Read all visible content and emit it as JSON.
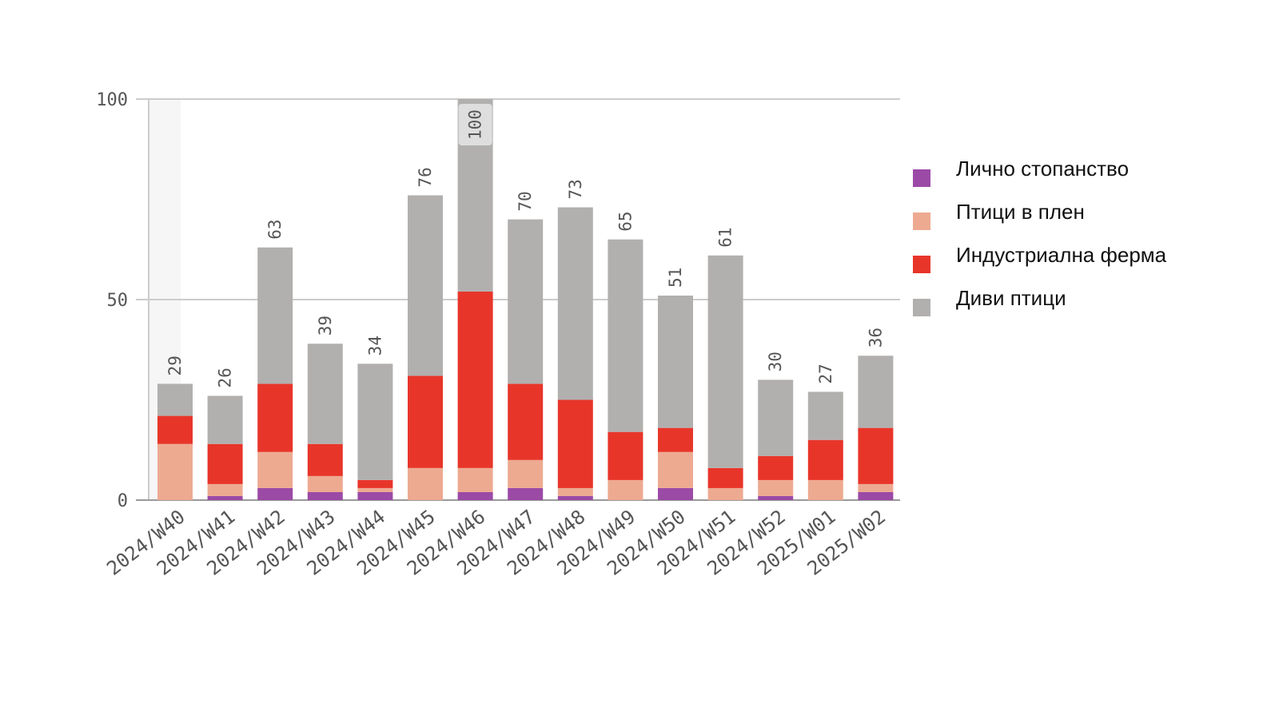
{
  "chart_data": {
    "type": "bar",
    "stacked": true,
    "categories": [
      "2024/W40",
      "2024/W41",
      "2024/W42",
      "2024/W43",
      "2024/W44",
      "2024/W45",
      "2024/W46",
      "2024/W47",
      "2024/W48",
      "2024/W49",
      "2024/W50",
      "2024/W51",
      "2024/W52",
      "2025/W01",
      "2025/W02"
    ],
    "series": [
      {
        "name": "Лично стопанство",
        "color": "#9b4aa6",
        "values": [
          0,
          1,
          3,
          2,
          2,
          0,
          2,
          3,
          1,
          0,
          3,
          0,
          1,
          0,
          2
        ]
      },
      {
        "name": "Птици в плен",
        "color": "#edaa91",
        "values": [
          14,
          3,
          9,
          4,
          1,
          8,
          6,
          7,
          2,
          5,
          9,
          3,
          4,
          5,
          2
        ]
      },
      {
        "name": "Индустриална ферма",
        "color": "#e8352a",
        "values": [
          7,
          10,
          17,
          8,
          2,
          23,
          44,
          19,
          22,
          12,
          6,
          5,
          6,
          10,
          14
        ]
      },
      {
        "name": "Диви птици",
        "color": "#b1b0af",
        "values": [
          8,
          12,
          34,
          25,
          29,
          45,
          48,
          41,
          48,
          48,
          33,
          53,
          19,
          12,
          18
        ]
      }
    ],
    "totals": [
      29,
      26,
      63,
      39,
      34,
      76,
      100,
      70,
      73,
      65,
      51,
      61,
      30,
      27,
      36
    ],
    "yticks": [
      0,
      50,
      100
    ],
    "ylim": [
      0,
      100
    ],
    "legend_position": "right",
    "grid": true,
    "colors": {
      "grid": "#cccccc",
      "axis": "#9a9a9a",
      "text": "#555555",
      "highlight_box": "#dedede"
    }
  }
}
